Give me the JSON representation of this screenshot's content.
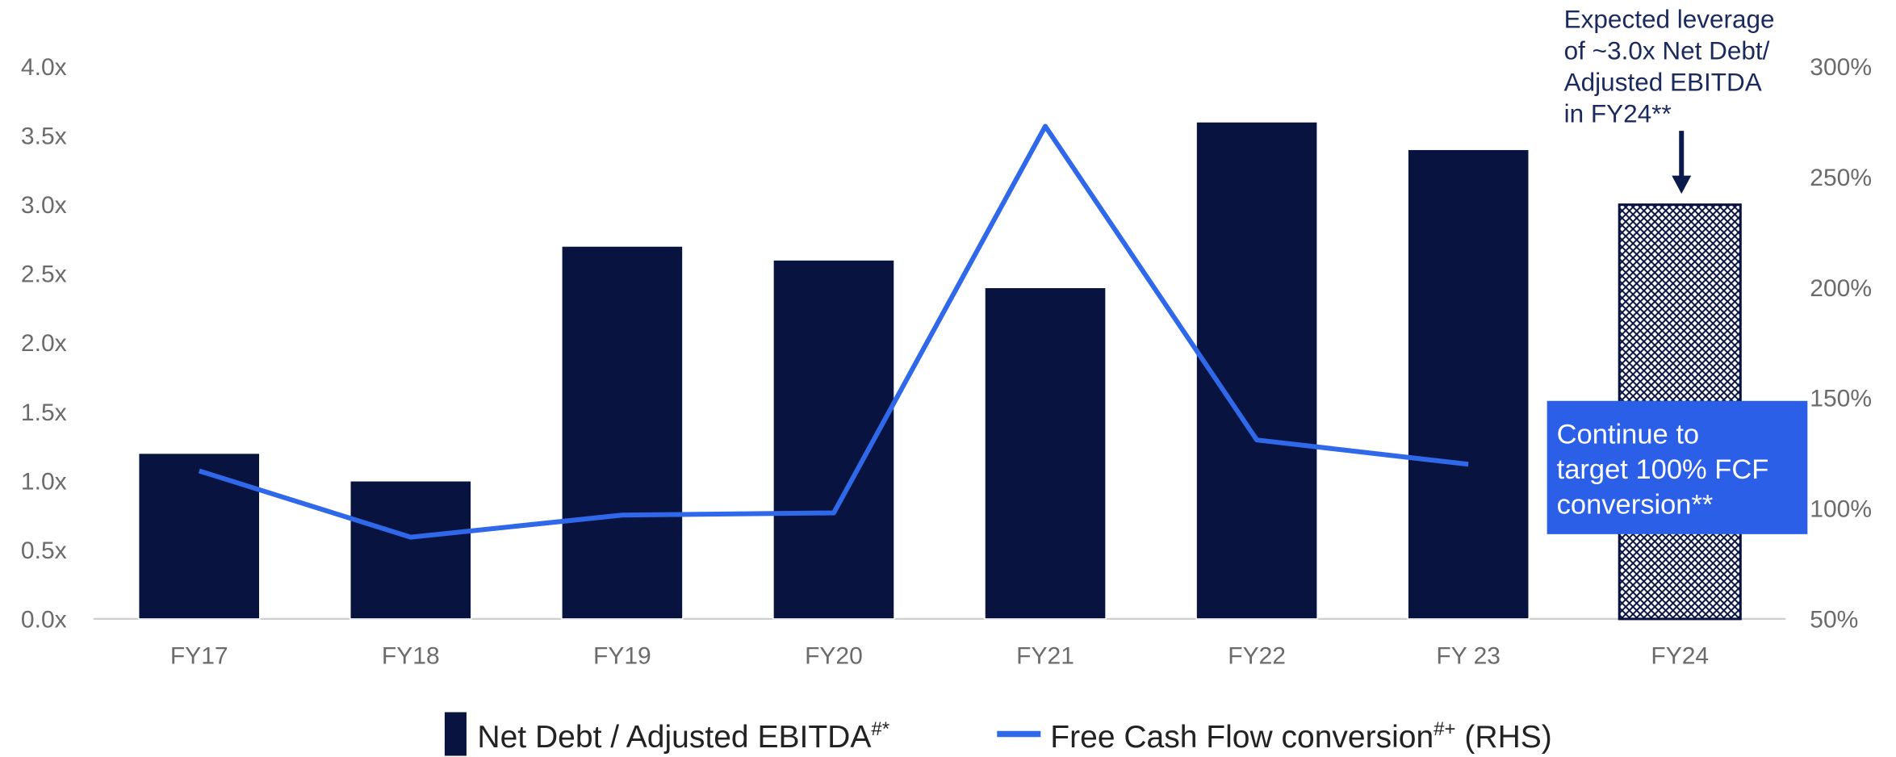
{
  "chart_data": {
    "type": "bar",
    "categories": [
      "FY17",
      "FY18",
      "FY19",
      "FY20",
      "FY21",
      "FY22",
      "FY 23",
      "FY24"
    ],
    "hatched": [
      false,
      false,
      false,
      false,
      false,
      false,
      false,
      true
    ],
    "series": [
      {
        "name": "Net Debt /  Adjusted EBITDA",
        "name_sup": "#*",
        "color": "#08133f",
        "type": "bar",
        "values": [
          1.2,
          1.0,
          2.7,
          2.6,
          2.4,
          3.6,
          3.4,
          3.0
        ]
      },
      {
        "name": "Free Cash Flow conversion",
        "name_sup": "#+",
        "name_suffix": " (RHS)",
        "color": "#2f68e8",
        "type": "line",
        "axis": "y2",
        "values": [
          117,
          87,
          97,
          98,
          273,
          131,
          120,
          null
        ]
      }
    ],
    "ylim": [
      0,
      4
    ],
    "yticks": [
      {
        "value": 0,
        "label": "0.0x"
      },
      {
        "value": 0.5,
        "label": "0.5x"
      },
      {
        "value": 1,
        "label": "1.0x"
      },
      {
        "value": 1.5,
        "label": "1.5x"
      },
      {
        "value": 2,
        "label": "2.0x"
      },
      {
        "value": 2.5,
        "label": "2.5x"
      },
      {
        "value": 3,
        "label": "3.0x"
      },
      {
        "value": 3.5,
        "label": "3.5x"
      },
      {
        "value": 4,
        "label": "4.0x"
      }
    ],
    "y2lim": [
      50,
      300
    ],
    "y2ticks": [
      {
        "value": 50,
        "label": "50%"
      },
      {
        "value": 100,
        "label": "100%"
      },
      {
        "value": 150,
        "label": "150%"
      },
      {
        "value": 200,
        "label": "200%"
      },
      {
        "value": 250,
        "label": "250%"
      },
      {
        "value": 300,
        "label": "300%"
      }
    ],
    "annotations": [
      {
        "lines": [
          "Expected leverage",
          "of ~3.0x Net Debt/",
          "Adjusted EBITDA",
          "in FY24**"
        ]
      },
      {
        "lines": [
          "Continue to",
          "target 100% FCF",
          "conversion**"
        ],
        "color": "#2c5fe8"
      }
    ]
  }
}
